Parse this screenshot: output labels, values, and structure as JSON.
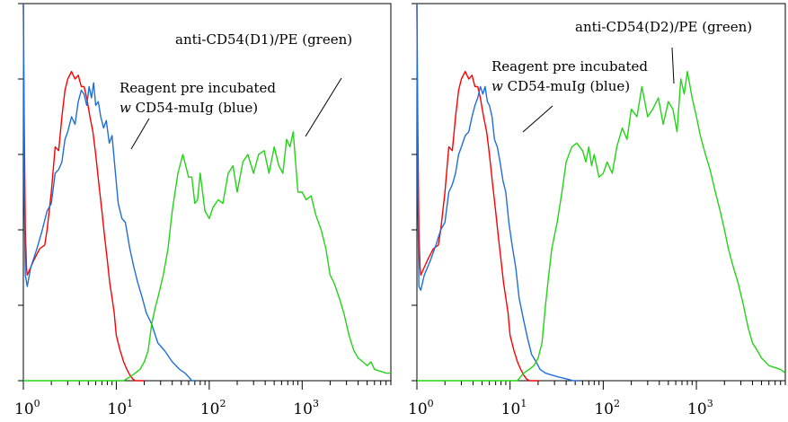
{
  "chart_data": [
    {
      "type": "line",
      "x_scale": "log",
      "xlim": [
        1,
        9000
      ],
      "ylim": [
        0,
        100
      ],
      "y_ticks": [
        0,
        20,
        40,
        60,
        80,
        100
      ],
      "x_tick_labels": [
        {
          "value": 1,
          "base": "10",
          "exp": "0"
        },
        {
          "value": 10,
          "base": "10",
          "exp": "1"
        },
        {
          "value": 100,
          "base": "10",
          "exp": "2"
        },
        {
          "value": 1000,
          "base": "10",
          "exp": "3"
        }
      ],
      "annotations": [
        {
          "lines": [
            {
              "italic": "",
              "text": "anti-CD54(D1)/PE (green)"
            }
          ]
        },
        {
          "lines": [
            {
              "italic": "",
              "text": "Reagent pre incubated"
            },
            {
              "italic": "w",
              "text": " CD54-muIg (blue)"
            }
          ]
        }
      ],
      "series": [
        {
          "color": "#ff0000",
          "x": [
            1,
            1.02,
            1.05,
            1.08,
            1.1,
            1.3,
            1.5,
            1.7,
            1.8,
            2.0,
            2.2,
            2.4,
            2.6,
            2.8,
            3.0,
            3.3,
            3.6,
            3.9,
            4.2,
            4.5,
            4.8,
            5.2,
            5.6,
            6.0,
            6.5,
            7.0,
            7.5,
            8.0,
            8.5,
            9.0,
            9.5,
            10,
            11,
            12,
            13,
            14,
            15,
            16,
            20
          ],
          "y": [
            100,
            70,
            40,
            30,
            28,
            32,
            35,
            36,
            40,
            50,
            62,
            61,
            70,
            77,
            80,
            82,
            80,
            81,
            78,
            78,
            75,
            70,
            66,
            60,
            52,
            45,
            38,
            32,
            26,
            22,
            18,
            12,
            8,
            5,
            3,
            1.5,
            0.5,
            0,
            0
          ]
        },
        {
          "color": "#1f6fd8",
          "x": [
            1,
            1.02,
            1.05,
            1.1,
            1.2,
            1.4,
            1.6,
            1.8,
            2.0,
            2.2,
            2.4,
            2.6,
            2.8,
            3.0,
            3.3,
            3.6,
            3.9,
            4.2,
            4.5,
            4.8,
            5.1,
            5.4,
            5.7,
            6.0,
            6.4,
            6.8,
            7.3,
            7.8,
            8.4,
            9.0,
            9.7,
            10.5,
            11.5,
            12.5,
            14,
            15.5,
            17,
            19,
            21,
            24,
            28,
            33,
            40,
            48,
            55,
            60,
            65,
            70
          ],
          "y": [
            100,
            50,
            28,
            25,
            30,
            35,
            40,
            45,
            47,
            55,
            56,
            58,
            64,
            66,
            70,
            68,
            74,
            77,
            76,
            73,
            78,
            75,
            79,
            73,
            74,
            70,
            67,
            69,
            63,
            65,
            56,
            47,
            43,
            42,
            35,
            30,
            26,
            22,
            18,
            15,
            10,
            8,
            5,
            3,
            2,
            1,
            0,
            0
          ]
        },
        {
          "color": "#23d316",
          "x": [
            1,
            12,
            14,
            16,
            18,
            20,
            22,
            24,
            26,
            28,
            32,
            36,
            40,
            46,
            52,
            60,
            65,
            70,
            75,
            80,
            90,
            100,
            110,
            125,
            140,
            160,
            180,
            200,
            230,
            260,
            300,
            340,
            390,
            440,
            500,
            560,
            620,
            680,
            740,
            800,
            900,
            1000,
            1100,
            1250,
            1400,
            1600,
            1800,
            2000,
            2200,
            2500,
            2800,
            3200,
            3600,
            4000,
            4500,
            5000,
            5500,
            6000,
            8000,
            9000
          ],
          "y": [
            0,
            0,
            1,
            2,
            3,
            5,
            8,
            15,
            19,
            22,
            28,
            35,
            45,
            55,
            60,
            54,
            54,
            47,
            48,
            55,
            45,
            43,
            46,
            48,
            47,
            55,
            57,
            50,
            58,
            60,
            55,
            60,
            61,
            55,
            62,
            57,
            55,
            64,
            62,
            66,
            50,
            50,
            48,
            49,
            44,
            40,
            35,
            28,
            26,
            22,
            18,
            12,
            8,
            6,
            5,
            4,
            5,
            3,
            2,
            2
          ]
        }
      ]
    },
    {
      "type": "line",
      "x_scale": "log",
      "xlim": [
        1,
        9000
      ],
      "ylim": [
        0,
        100
      ],
      "y_ticks": [
        0,
        20,
        40,
        60,
        80,
        100
      ],
      "x_tick_labels": [
        {
          "value": 1,
          "base": "10",
          "exp": "0"
        },
        {
          "value": 10,
          "base": "10",
          "exp": "1"
        },
        {
          "value": 100,
          "base": "10",
          "exp": "2"
        },
        {
          "value": 1000,
          "base": "10",
          "exp": "3"
        }
      ],
      "annotations": [
        {
          "lines": [
            {
              "italic": "",
              "text": "anti-CD54(D2)/PE (green)"
            }
          ]
        },
        {
          "lines": [
            {
              "italic": "",
              "text": "Reagent pre incubated"
            },
            {
              "italic": "w",
              "text": " CD54-muIg (blue)"
            }
          ]
        }
      ],
      "series": [
        {
          "color": "#ff0000",
          "x": [
            1,
            1.02,
            1.05,
            1.08,
            1.1,
            1.3,
            1.5,
            1.7,
            1.8,
            2.0,
            2.2,
            2.4,
            2.6,
            2.8,
            3.0,
            3.3,
            3.6,
            3.9,
            4.2,
            4.5,
            4.8,
            5.2,
            5.6,
            6.0,
            6.5,
            7.0,
            7.5,
            8.0,
            8.5,
            9.0,
            9.5,
            10,
            11,
            12,
            13,
            14,
            15,
            16,
            20
          ],
          "y": [
            100,
            70,
            40,
            30,
            28,
            32,
            35,
            36,
            40,
            50,
            62,
            61,
            70,
            77,
            80,
            82,
            80,
            81,
            78,
            78,
            75,
            70,
            66,
            60,
            52,
            45,
            38,
            32,
            26,
            22,
            18,
            12,
            8,
            5,
            3,
            1.5,
            0.5,
            0,
            0
          ]
        },
        {
          "color": "#1f6fd8",
          "x": [
            1,
            1.02,
            1.05,
            1.1,
            1.2,
            1.4,
            1.6,
            1.8,
            2.0,
            2.2,
            2.4,
            2.6,
            2.8,
            3.0,
            3.3,
            3.6,
            3.9,
            4.2,
            4.5,
            4.8,
            5.1,
            5.4,
            5.7,
            6.0,
            6.4,
            6.8,
            7.3,
            7.8,
            8.4,
            9.0,
            9.7,
            10.5,
            11.5,
            12.5,
            14,
            15.5,
            17,
            19,
            21,
            24,
            28,
            33,
            40,
            48,
            55
          ],
          "y": [
            100,
            50,
            25,
            24,
            28,
            32,
            36,
            40,
            42,
            50,
            52,
            55,
            60,
            62,
            65,
            66,
            70,
            73,
            75,
            78,
            76,
            78,
            74,
            73,
            70,
            64,
            62,
            58,
            53,
            50,
            42,
            36,
            30,
            22,
            16,
            11,
            7,
            5,
            3,
            2,
            1.5,
            1,
            0.5,
            0,
            0
          ]
        },
        {
          "color": "#23d316",
          "x": [
            1,
            12,
            14,
            16,
            18,
            20,
            22,
            24,
            26,
            28,
            32,
            36,
            40,
            46,
            52,
            60,
            65,
            70,
            75,
            80,
            90,
            100,
            110,
            125,
            140,
            160,
            180,
            200,
            230,
            260,
            300,
            340,
            390,
            440,
            500,
            560,
            620,
            680,
            740,
            800,
            900,
            1000,
            1100,
            1250,
            1400,
            1600,
            1800,
            2000,
            2200,
            2500,
            2800,
            3200,
            3600,
            4000,
            4500,
            5000,
            5500,
            6000,
            8000,
            9000
          ],
          "y": [
            0,
            0,
            2,
            3,
            4,
            6,
            10,
            20,
            28,
            35,
            42,
            50,
            58,
            62,
            63,
            61,
            58,
            62,
            57,
            60,
            54,
            55,
            58,
            55,
            62,
            67,
            64,
            72,
            70,
            78,
            70,
            72,
            75,
            68,
            74,
            72,
            66,
            80,
            76,
            82,
            75,
            70,
            65,
            60,
            56,
            50,
            45,
            40,
            35,
            30,
            26,
            20,
            14,
            10,
            8,
            6,
            5,
            4,
            3,
            2
          ]
        }
      ]
    }
  ]
}
